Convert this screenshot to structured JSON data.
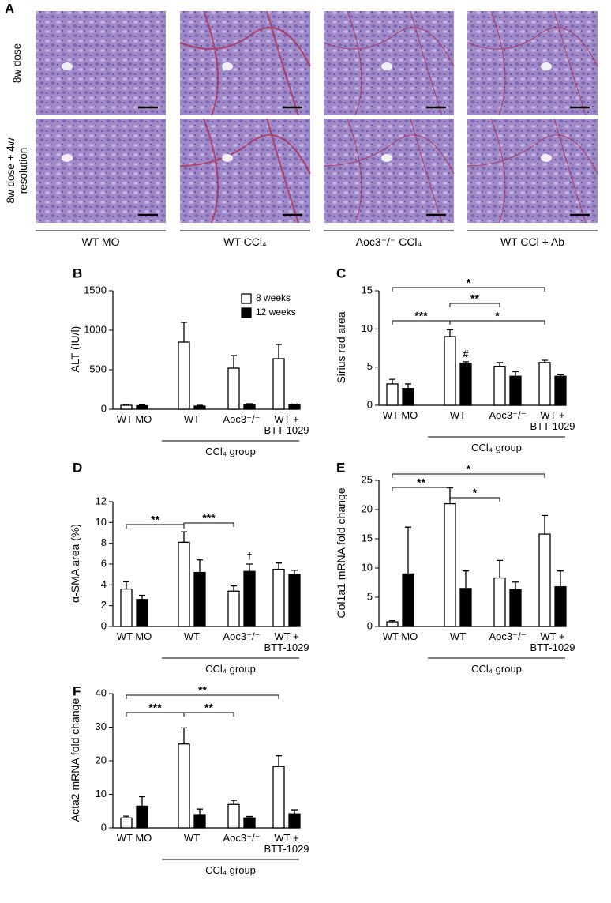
{
  "panel_a": {
    "label": "A",
    "row_labels": [
      "8w dose",
      "8w dose + 4w resolution"
    ],
    "column_labels": [
      "WT MO",
      "WT CCl₄",
      "Aoc3⁻/⁻ CCl₄",
      "WT CCl + Ab"
    ]
  },
  "chart_data": [
    {
      "type": "bar",
      "panel": "B",
      "ylabel": "ALT (IU/l)",
      "group_label": "CCl₄ group",
      "categories": [
        "WT MO",
        "WT",
        "Aoc3⁻/⁻",
        "WT + BTT-1029"
      ],
      "series": [
        {
          "name": "8 weeks",
          "color": "#ffffff",
          "values": [
            50,
            850,
            520,
            640
          ],
          "errors": [
            5,
            250,
            160,
            180
          ]
        },
        {
          "name": "12 weeks",
          "color": "#000000",
          "values": [
            45,
            40,
            60,
            55
          ],
          "errors": [
            10,
            10,
            10,
            10
          ]
        }
      ],
      "ylim": [
        0,
        1500
      ],
      "yticks": [
        0,
        500,
        1000,
        1500
      ],
      "legend": "top-right",
      "annotations": [],
      "symbols": []
    },
    {
      "type": "bar",
      "panel": "C",
      "ylabel": "Sirius red area",
      "group_label": "CCl₄ group",
      "categories": [
        "WT MO",
        "WT",
        "Aoc3⁻/⁻",
        "WT + BTT-1029"
      ],
      "series": [
        {
          "name": "8 weeks",
          "color": "#ffffff",
          "values": [
            2.8,
            9.0,
            5.1,
            5.6
          ],
          "errors": [
            0.6,
            0.9,
            0.5,
            0.3
          ]
        },
        {
          "name": "12 weeks",
          "color": "#000000",
          "values": [
            2.2,
            5.5,
            3.8,
            3.8
          ],
          "errors": [
            0.6,
            0.2,
            0.6,
            0.2
          ]
        }
      ],
      "ylim": [
        0,
        15
      ],
      "yticks": [
        0,
        5,
        10,
        15
      ],
      "annotations": [
        "*",
        "**",
        "***",
        "*"
      ],
      "symbols": [
        "#"
      ]
    },
    {
      "type": "bar",
      "panel": "D",
      "ylabel": "α-SMA area (%)",
      "group_label": "CCl₄ group",
      "categories": [
        "WT MO",
        "WT",
        "Aoc3⁻/⁻",
        "WT + BTT-1029"
      ],
      "series": [
        {
          "name": "8 weeks",
          "color": "#ffffff",
          "values": [
            3.6,
            8.1,
            3.4,
            5.5
          ],
          "errors": [
            0.7,
            1.0,
            0.5,
            0.6
          ]
        },
        {
          "name": "12 weeks",
          "color": "#000000",
          "values": [
            2.6,
            5.2,
            5.3,
            5.0
          ],
          "errors": [
            0.4,
            1.2,
            0.7,
            0.4
          ]
        }
      ],
      "ylim": [
        0,
        12
      ],
      "yticks": [
        0,
        2,
        4,
        6,
        8,
        10,
        12
      ],
      "annotations": [
        "**",
        "***"
      ],
      "symbols": [
        "†"
      ]
    },
    {
      "type": "bar",
      "panel": "E",
      "ylabel": "Col1a1 mRNA fold change",
      "group_label": "CCl₄ group",
      "categories": [
        "WT MO",
        "WT",
        "Aoc3⁻/⁻",
        "WT + BTT-1029"
      ],
      "series": [
        {
          "name": "8 weeks",
          "color": "#ffffff",
          "values": [
            0.8,
            21,
            8.3,
            15.8
          ],
          "errors": [
            0.2,
            2.7,
            3,
            3.2
          ]
        },
        {
          "name": "12 weeks",
          "color": "#000000",
          "values": [
            9,
            6.5,
            6.3,
            6.8
          ],
          "errors": [
            8,
            3,
            1.3,
            2.7
          ]
        }
      ],
      "ylim": [
        0,
        25
      ],
      "yticks": [
        0,
        5,
        10,
        15,
        20,
        25
      ],
      "annotations": [
        "*",
        "**",
        "*"
      ],
      "symbols": []
    },
    {
      "type": "bar",
      "panel": "F",
      "ylabel": "Acta2 mRNA fold change",
      "group_label": "CCl₄ group",
      "categories": [
        "WT MO",
        "WT",
        "Aoc3⁻/⁻",
        "WT + BTT-1029"
      ],
      "series": [
        {
          "name": "8 weeks",
          "color": "#ffffff",
          "values": [
            3,
            25,
            7,
            18.3
          ],
          "errors": [
            0.5,
            4.8,
            1.2,
            3.2
          ]
        },
        {
          "name": "12 weeks",
          "color": "#000000",
          "values": [
            6.5,
            4,
            3,
            4.2
          ],
          "errors": [
            2.8,
            1.6,
            0.4,
            1.2
          ]
        }
      ],
      "ylim": [
        0,
        40
      ],
      "yticks": [
        0,
        10,
        20,
        30,
        40
      ],
      "annotations": [
        "**",
        "***",
        "**"
      ],
      "symbols": []
    }
  ]
}
